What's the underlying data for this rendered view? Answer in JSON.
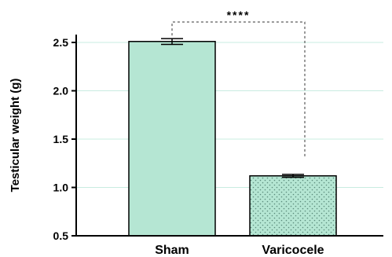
{
  "chart_data": {
    "type": "bar",
    "categories": [
      "Sham",
      "Varicocele"
    ],
    "values": [
      2.51,
      1.12
    ],
    "errors": [
      0.03,
      0.015
    ],
    "ylabel": "Testicular weight (g)",
    "xlabel": "",
    "ylim": [
      0.5,
      2.6
    ],
    "yticks": [
      0.5,
      1.0,
      1.5,
      2.0,
      2.5
    ],
    "ytick_labels": [
      "0.5",
      "1.0",
      "1.5",
      "2.0",
      "2.5"
    ],
    "grid": true,
    "significance": "****",
    "colors": {
      "bar_fill": "#b5e6d3",
      "bar_stroke": "#000000",
      "grid": "#c8ece0",
      "dots": "#5a8a7a"
    }
  }
}
